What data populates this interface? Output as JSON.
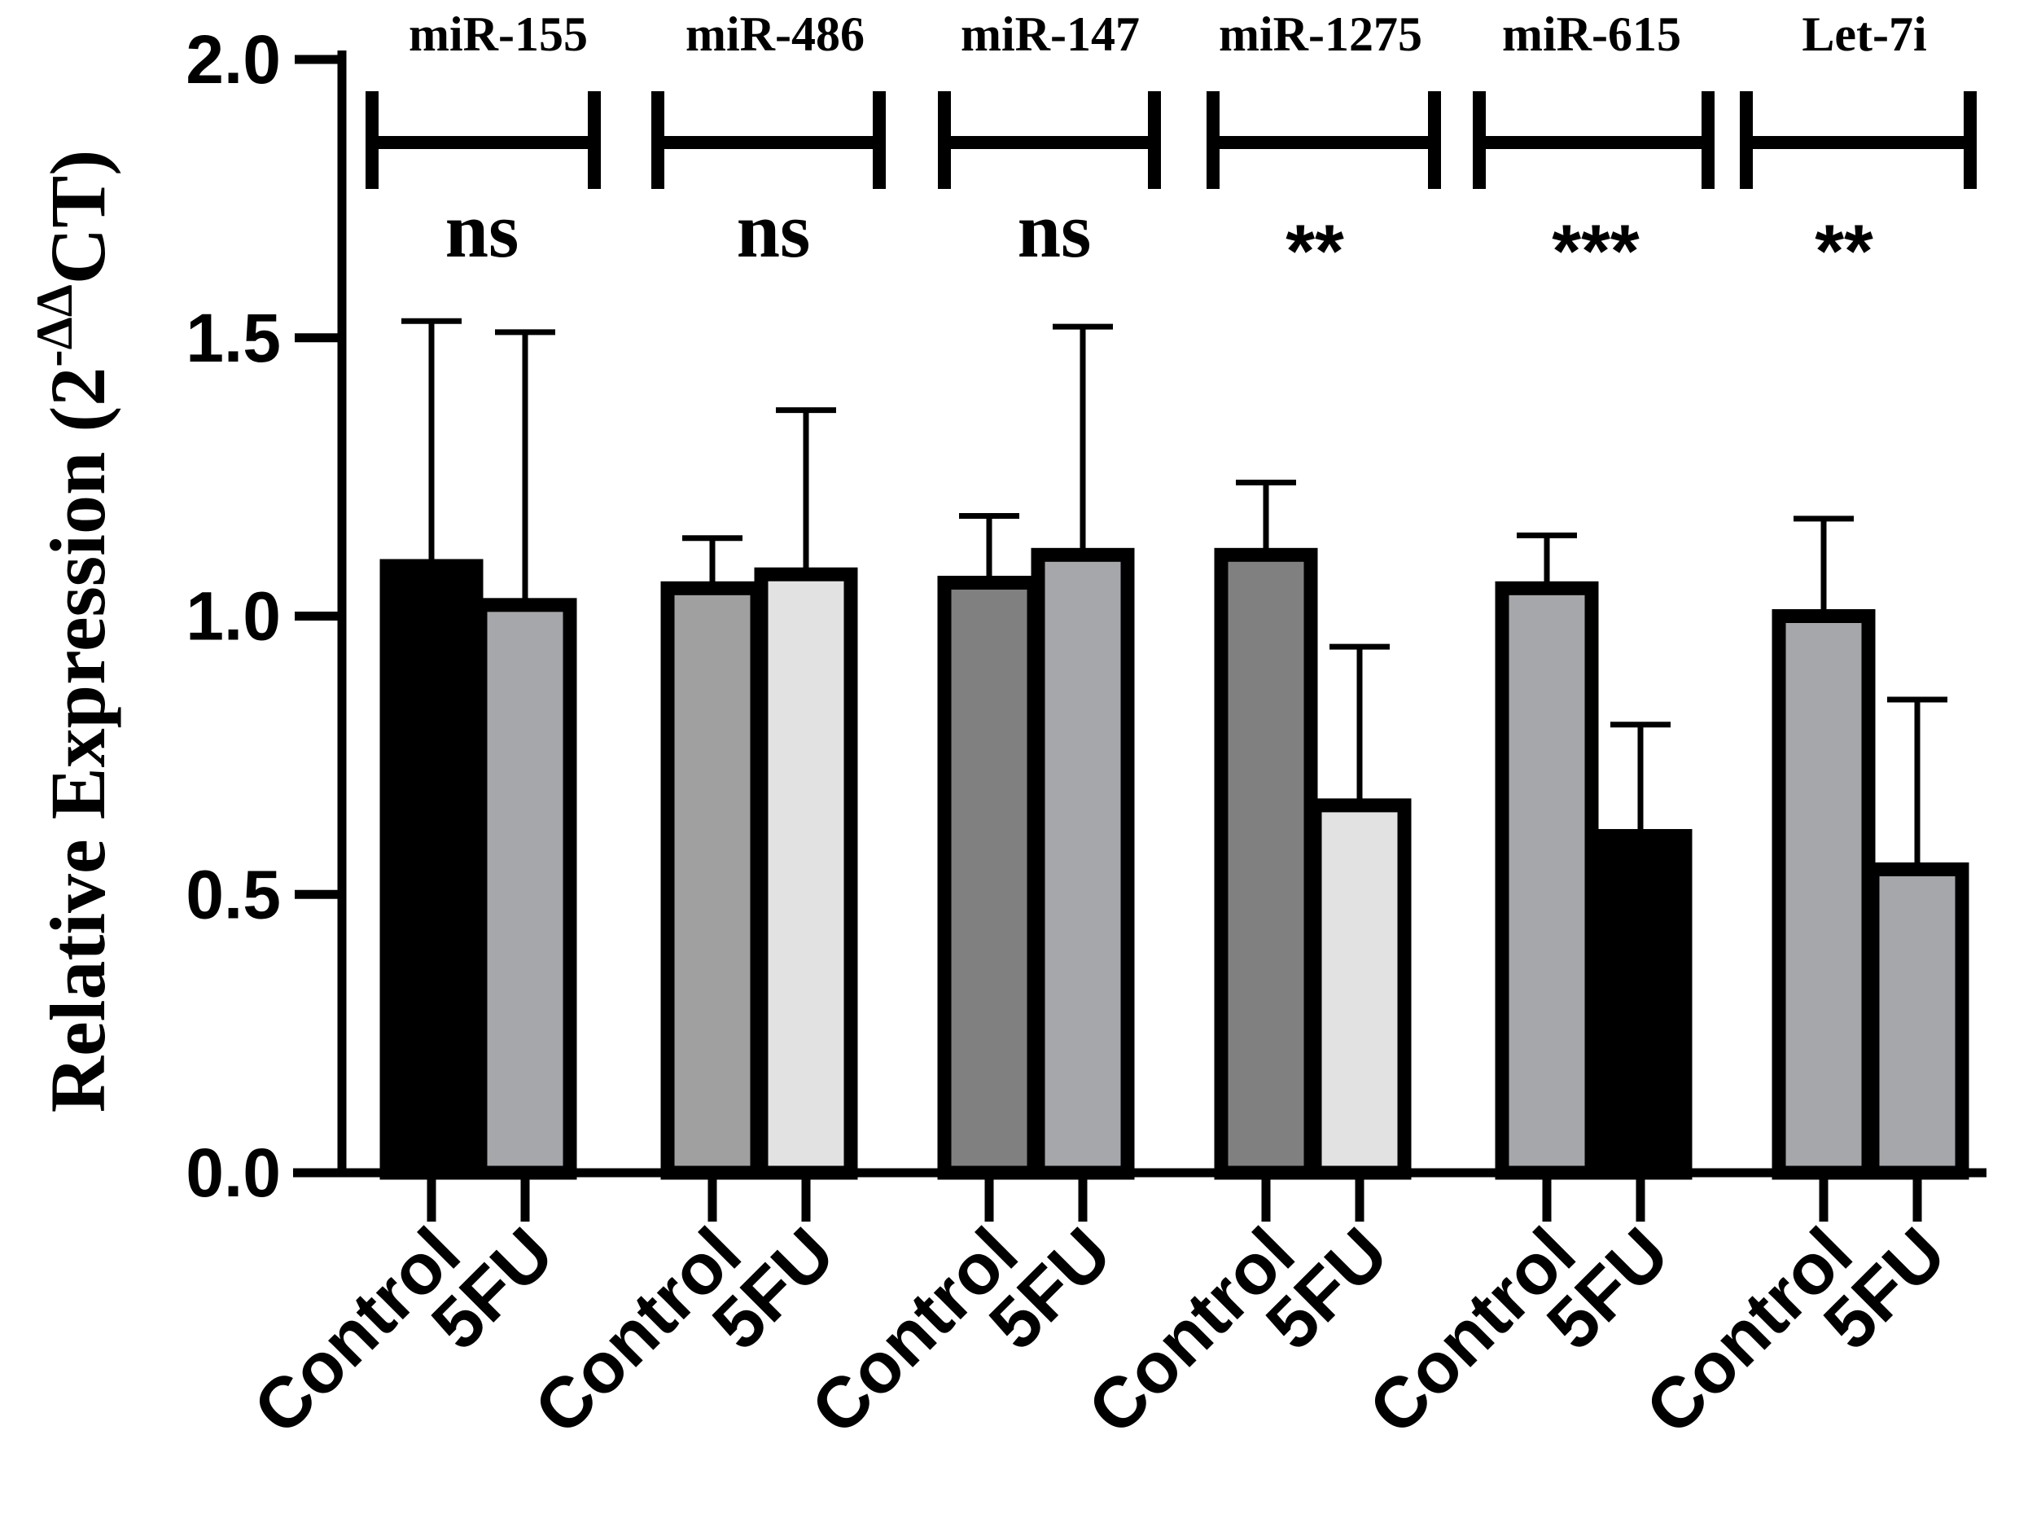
{
  "chart_data": {
    "type": "bar",
    "ylabel_main": "Relative Expression (2",
    "ylabel_sup": "-ΔΔ",
    "ylabel_end": "CT)",
    "ylim": [
      0,
      2.0
    ],
    "yticks": [
      "0.0",
      "0.5",
      "1.0",
      "1.5",
      "2.0"
    ],
    "ytick_values": [
      0,
      0.5,
      1.0,
      1.5,
      2.0
    ],
    "colors": {
      "black": "#000000",
      "dark_gray": "#808080",
      "mid_gray": "#a0a0a0",
      "gray": "#a6a7ab",
      "light_gray": "#e2e2e2"
    },
    "groups": [
      {
        "name": "miR-155",
        "significance": "ns",
        "bars": [
          {
            "category": "Control",
            "value": 1.09,
            "error": 0.44,
            "color": "#000000"
          },
          {
            "category": "5FU",
            "value": 1.02,
            "error": 0.49,
            "color": "#a6a7ab"
          }
        ]
      },
      {
        "name": "miR-486",
        "significance": "ns",
        "bars": [
          {
            "category": "Control",
            "value": 1.05,
            "error": 0.09,
            "color": "#a0a0a0"
          },
          {
            "category": "5FU",
            "value": 1.075,
            "error": 0.295,
            "color": "#e2e2e2"
          }
        ]
      },
      {
        "name": "miR-147",
        "significance": "ns",
        "bars": [
          {
            "category": "Control",
            "value": 1.06,
            "error": 0.12,
            "color": "#808080"
          },
          {
            "category": "5FU",
            "value": 1.11,
            "error": 0.41,
            "color": "#a6a7ab"
          }
        ]
      },
      {
        "name": "miR-1275",
        "significance": "**",
        "bars": [
          {
            "category": "Control",
            "value": 1.11,
            "error": 0.13,
            "color": "#808080"
          },
          {
            "category": "5FU",
            "value": 0.66,
            "error": 0.285,
            "color": "#e2e2e2"
          }
        ]
      },
      {
        "name": "miR-615",
        "significance": "***",
        "bars": [
          {
            "category": "Control",
            "value": 1.05,
            "error": 0.095,
            "color": "#a6a7ab"
          },
          {
            "category": "5FU",
            "value": 0.605,
            "error": 0.2,
            "color": "#000000"
          }
        ]
      },
      {
        "name": "Let-7i",
        "significance": "**",
        "bars": [
          {
            "category": "Control",
            "value": 1.0,
            "error": 0.175,
            "color": "#a6a7ab"
          },
          {
            "category": "5FU",
            "value": 0.545,
            "error": 0.305,
            "color": "#a6a7ab"
          }
        ]
      }
    ]
  }
}
